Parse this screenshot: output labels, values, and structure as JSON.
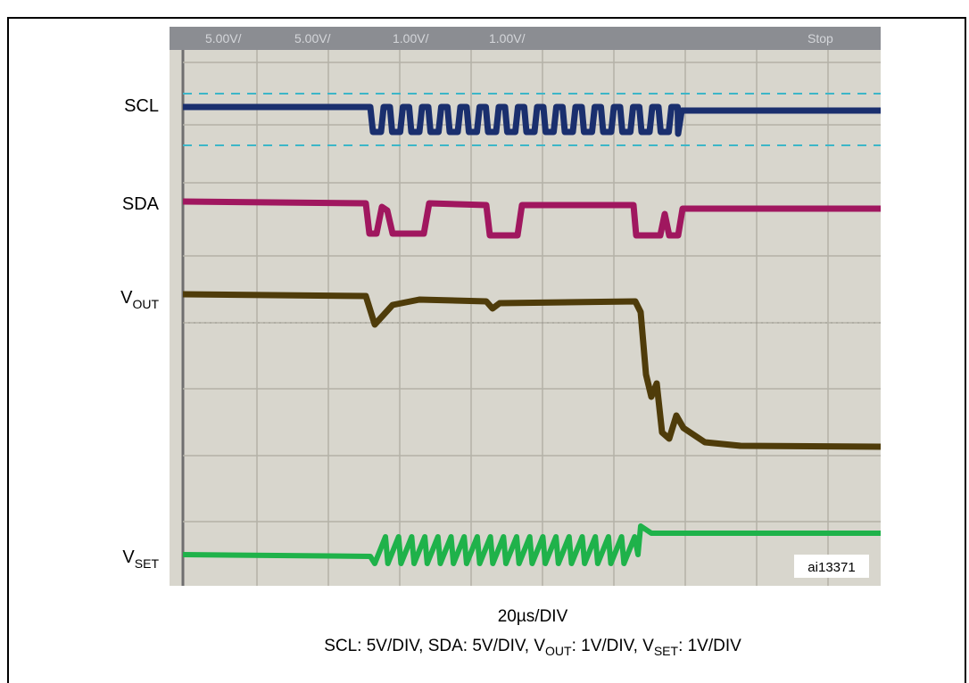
{
  "figure": {
    "scope_header": [
      "5.00V/",
      "5.00V/",
      "1.00V/",
      "1.00V/",
      "Stop"
    ],
    "signals": [
      {
        "main": "SCL"
      },
      {
        "main": "SDA"
      },
      {
        "main": "V",
        "sub": "OUT"
      },
      {
        "main": "V",
        "sub": "SET"
      }
    ],
    "figure_id": "ai13371",
    "caption": {
      "timebase": "20µs/DIV",
      "scales": [
        {
          "text": "SCL: 5V/DIV, SDA: 5V/DIV, V"
        },
        {
          "sub": "OUT"
        },
        {
          "text": ": 1V/DIV, V"
        },
        {
          "sub": "SET"
        },
        {
          "text": ": 1V/DIV"
        }
      ]
    }
  }
}
